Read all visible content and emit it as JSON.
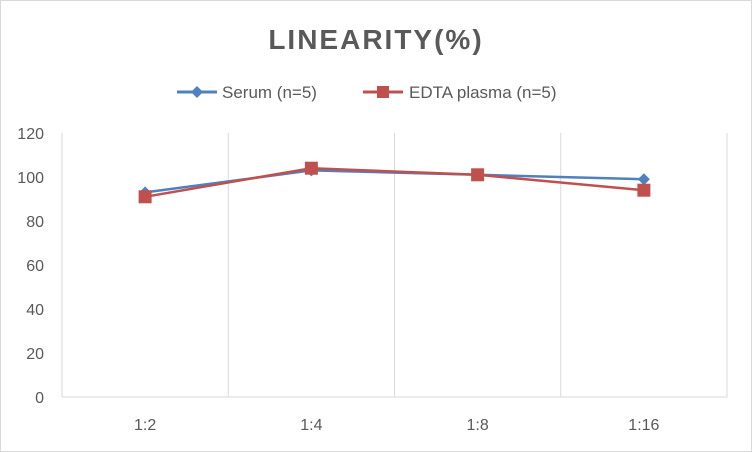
{
  "chart_data": {
    "type": "line",
    "title": "LINEARITY(%)",
    "categories": [
      "1:2",
      "1:4",
      "1:8",
      "1:16"
    ],
    "ylim": [
      0,
      120
    ],
    "yticks": [
      "0",
      "20",
      "40",
      "60",
      "80",
      "100",
      "120"
    ],
    "grid": "vertical",
    "legend_position": "top",
    "series": [
      {
        "name": "Serum (n=5)",
        "values": [
          93,
          103,
          101,
          99
        ],
        "color": "#4f81bd",
        "marker": "diamond"
      },
      {
        "name": "EDTA plasma (n=5)",
        "values": [
          91,
          104,
          101,
          94
        ],
        "color": "#c0504d",
        "marker": "square"
      }
    ]
  }
}
